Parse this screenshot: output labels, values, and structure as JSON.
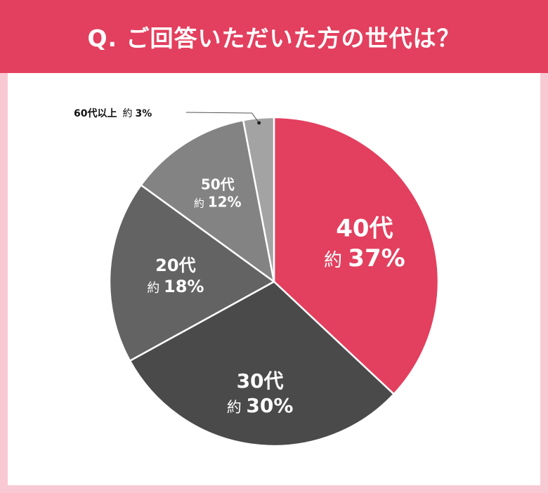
{
  "header": {
    "title": "Q. ご回答いただいた方の世代は？"
  },
  "colors": {
    "header": "#e33f5e",
    "frame": "#f9c9d3",
    "panel": "#ffffff"
  },
  "chart_data": {
    "type": "pie",
    "title": "Q. ご回答いただいた方の世代は？",
    "prefix": "約",
    "slices": [
      {
        "label": "40代",
        "value": 37,
        "value_text": "37%",
        "color": "#e33f5e",
        "text_color": "#ffffff"
      },
      {
        "label": "30代",
        "value": 30,
        "value_text": "30%",
        "color": "#4a4a4a",
        "text_color": "#ffffff"
      },
      {
        "label": "20代",
        "value": 18,
        "value_text": "18%",
        "color": "#636363",
        "text_color": "#ffffff"
      },
      {
        "label": "50代",
        "value": 12,
        "value_text": "12%",
        "color": "#838383",
        "text_color": "#ffffff"
      },
      {
        "label": "60代以上",
        "value": 3,
        "value_text": "3%",
        "color": "#a3a3a3",
        "text_color": "#111111"
      }
    ]
  }
}
